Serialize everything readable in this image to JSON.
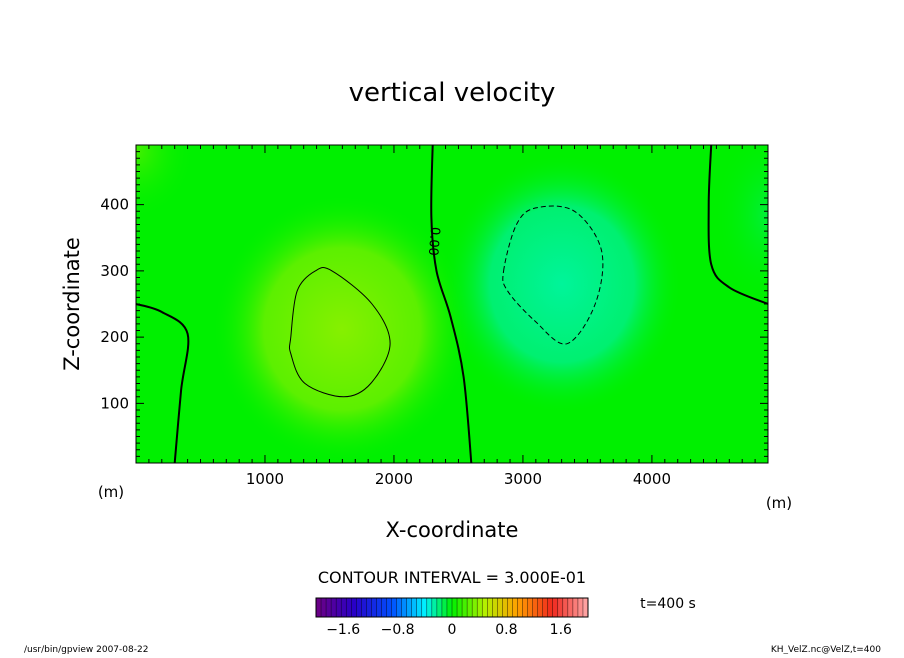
{
  "chart_data": {
    "type": "contour",
    "title": "vertical velocity",
    "xlabel": "X-coordinate",
    "ylabel": "Z-coordinate",
    "x_unit": "(m)",
    "y_unit": "(m)",
    "xlim": [
      0,
      4900
    ],
    "ylim": [
      10,
      490
    ],
    "x_ticks": [
      1000,
      2000,
      3000,
      4000
    ],
    "y_ticks": [
      100,
      200,
      300,
      400
    ],
    "contour_interval_text": "CONTOUR INTERVAL = 3.000E-01",
    "contour_label": "0.00",
    "time_text": "t=400 s",
    "colorbar": {
      "range": [
        -2.0,
        2.0
      ],
      "tick_labels": [
        "-1.6",
        "-0.8",
        "0",
        "0.8",
        "1.6"
      ],
      "tick_values": [
        -1.6,
        -0.8,
        0,
        0.8,
        1.6
      ]
    },
    "features": [
      {
        "kind": "positive-maximum",
        "x": 1630,
        "z": 210,
        "contour_level": 0.3
      },
      {
        "kind": "negative-minimum",
        "x": 3320,
        "z": 290,
        "contour_level": -0.3
      }
    ],
    "zero_contours": [
      {
        "points": [
          [
            0,
            250
          ],
          [
            200,
            238
          ],
          [
            400,
            205
          ],
          [
            350,
            120
          ],
          [
            300,
            10
          ]
        ]
      },
      {
        "points": [
          [
            2300,
            490
          ],
          [
            2290,
            380
          ],
          [
            2330,
            300
          ],
          [
            2440,
            230
          ],
          [
            2540,
            140
          ],
          [
            2600,
            10
          ]
        ]
      },
      {
        "points": [
          [
            4460,
            490
          ],
          [
            4440,
            400
          ],
          [
            4460,
            310
          ],
          [
            4600,
            275
          ],
          [
            4900,
            250
          ]
        ]
      }
    ],
    "positive_contours": [
      {
        "level": 0.3,
        "points": [
          [
            1200,
            200
          ],
          [
            1250,
            270
          ],
          [
            1390,
            300
          ],
          [
            1520,
            300
          ],
          [
            1830,
            250
          ],
          [
            1970,
            190
          ],
          [
            1820,
            130
          ],
          [
            1610,
            110
          ],
          [
            1310,
            130
          ],
          [
            1200,
            175
          ]
        ]
      }
    ],
    "negative_contours": [
      {
        "level": -0.3,
        "points": [
          [
            2850,
            300
          ],
          [
            2950,
            370
          ],
          [
            3100,
            395
          ],
          [
            3400,
            390
          ],
          [
            3610,
            330
          ],
          [
            3560,
            250
          ],
          [
            3340,
            190
          ],
          [
            3090,
            225
          ],
          [
            2880,
            270
          ]
        ]
      }
    ]
  },
  "footer": {
    "left": "/usr/bin/gpview   2007-08-22",
    "right": "KH_VelZ.nc@VelZ,t=400"
  }
}
